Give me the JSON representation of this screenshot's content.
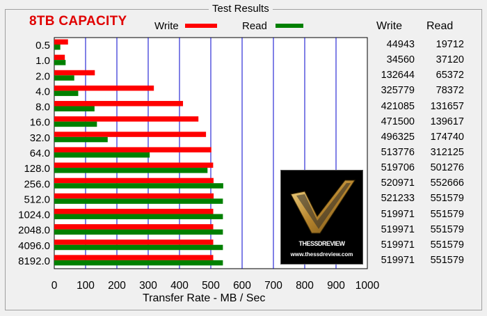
{
  "panel": {
    "group_title": "Test Results",
    "capacity_label": "8TB CAPACITY",
    "legend_write": "Write",
    "legend_read": "Read",
    "col_write": "Write",
    "col_read": "Read"
  },
  "colors": {
    "write": "#ff0000",
    "read": "#008000",
    "gridline": "#0000cc"
  },
  "logo": {
    "icon": "checkmark-logo-icon",
    "brand": "THESSDREVIEW",
    "url": "www.thessdreview.com"
  },
  "chart_data": {
    "type": "bar",
    "orientation": "horizontal",
    "categories": [
      "0.5",
      "1.0",
      "2.0",
      "4.0",
      "8.0",
      "16.0",
      "32.0",
      "64.0",
      "128.0",
      "256.0",
      "512.0",
      "1024.0",
      "2048.0",
      "4096.0",
      "8192.0"
    ],
    "series": [
      {
        "name": "Write",
        "values": [
          44943,
          34560,
          132644,
          325779,
          421085,
          471500,
          496325,
          513776,
          519706,
          520971,
          521233,
          519971,
          519971,
          519971,
          519971
        ]
      },
      {
        "name": "Read",
        "values": [
          19712,
          37120,
          65372,
          78372,
          131657,
          139617,
          174740,
          312125,
          501276,
          552666,
          551579,
          551579,
          551579,
          551579,
          551579
        ]
      }
    ],
    "xlabel": "Transfer Rate - MB / Sec",
    "xlim": [
      0,
      1000
    ],
    "xticks": [
      "0",
      "100",
      "200",
      "300",
      "400",
      "500",
      "600",
      "700",
      "800",
      "900",
      "1000"
    ],
    "grid": true,
    "legend": "top"
  }
}
